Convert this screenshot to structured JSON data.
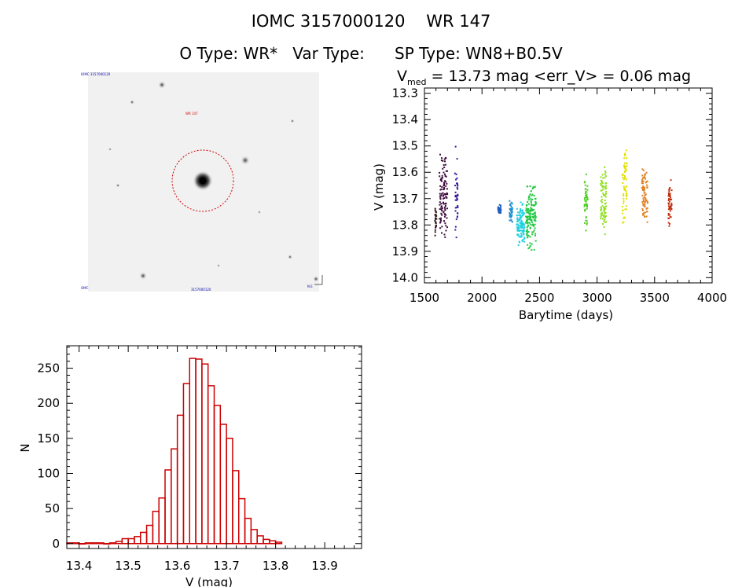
{
  "header": {
    "id_line_left": "IOMC 3157000120",
    "id_line_right": "WR 147",
    "type_line": {
      "o_type": "O Type: WR*",
      "var_type": "Var Type:",
      "sp_type": "SP Type: WN8+B0.5V"
    },
    "stats": {
      "v_label": "V",
      "v_sub": "med",
      "v_text": " = 13.73 mag <err_V> = 0.06 mag"
    }
  },
  "image_panel": {
    "corner_label_tl": "IOMC 3157000120",
    "label_top": "WR 147",
    "label_bottom": "3157000120",
    "corner_label_bl": "OMC",
    "corner_label_br": "N E"
  },
  "chart_data": [
    {
      "type": "scatter",
      "xlabel": "Barytime (days)",
      "ylabel": "V (mag)",
      "xlim": [
        1500,
        4000
      ],
      "ylim": [
        14.02,
        13.28
      ],
      "y_inverted": true,
      "x_ticks": [
        1500,
        2000,
        2500,
        3000,
        3500,
        4000
      ],
      "y_ticks": [
        13.3,
        13.4,
        13.5,
        13.6,
        13.7,
        13.8,
        13.9,
        14.0
      ],
      "y_tick_labels": [
        "13.3",
        "13.4",
        "13.5",
        "13.6",
        "13.7",
        "13.8",
        "13.9",
        "14.0"
      ],
      "clusters": [
        {
          "x_min": 1590,
          "x_max": 1605,
          "y_min": 13.69,
          "y_max": 13.87,
          "color": "#2a1010"
        },
        {
          "x_min": 1630,
          "x_max": 1700,
          "y_min": 13.48,
          "y_max": 13.9,
          "color": "#3d0d3d"
        },
        {
          "x_min": 1765,
          "x_max": 1790,
          "y_min": 13.46,
          "y_max": 13.89,
          "color": "#3a1aa0"
        },
        {
          "x_min": 2140,
          "x_max": 2165,
          "y_min": 13.72,
          "y_max": 13.77,
          "color": "#2060c0"
        },
        {
          "x_min": 2240,
          "x_max": 2265,
          "y_min": 13.69,
          "y_max": 13.81,
          "color": "#2090d0"
        },
        {
          "x_min": 2300,
          "x_max": 2370,
          "y_min": 13.7,
          "y_max": 13.9,
          "color": "#20d0e0"
        },
        {
          "x_min": 2380,
          "x_max": 2470,
          "y_min": 13.61,
          "y_max": 13.93,
          "color": "#20c840"
        },
        {
          "x_min": 2890,
          "x_max": 2920,
          "y_min": 13.57,
          "y_max": 13.84,
          "color": "#50d020"
        },
        {
          "x_min": 3030,
          "x_max": 3080,
          "y_min": 13.51,
          "y_max": 13.88,
          "color": "#90e020"
        },
        {
          "x_min": 3220,
          "x_max": 3260,
          "y_min": 13.39,
          "y_max": 13.85,
          "color": "#e0e000"
        },
        {
          "x_min": 3390,
          "x_max": 3440,
          "y_min": 13.53,
          "y_max": 13.84,
          "color": "#e08020"
        },
        {
          "x_min": 3620,
          "x_max": 3650,
          "y_min": 13.59,
          "y_max": 13.84,
          "color": "#c03010"
        }
      ]
    },
    {
      "type": "bar",
      "style": "histogram",
      "xlabel": "V (mag)",
      "ylabel": "N",
      "xlim": [
        13.375,
        13.975
      ],
      "ylim": [
        -7,
        282
      ],
      "x_ticks": [
        13.4,
        13.5,
        13.6,
        13.7,
        13.8,
        13.9
      ],
      "x_tick_labels": [
        "13.4",
        "13.5",
        "13.6",
        "13.7",
        "13.8",
        "13.9"
      ],
      "y_ticks": [
        0,
        50,
        100,
        150,
        200,
        250
      ],
      "y_tick_labels": [
        "0",
        "50",
        "100",
        "150",
        "200",
        "250"
      ],
      "bin_width": 0.0125,
      "bin_start": 13.375,
      "values": [
        1,
        1,
        0,
        1,
        1,
        1,
        0,
        1,
        3,
        7,
        7,
        10,
        16,
        26,
        46,
        65,
        105,
        135,
        183,
        228,
        264,
        263,
        256,
        225,
        197,
        170,
        150,
        104,
        64,
        36,
        20,
        11,
        6,
        4,
        2
      ],
      "color": "#cc0000"
    }
  ]
}
